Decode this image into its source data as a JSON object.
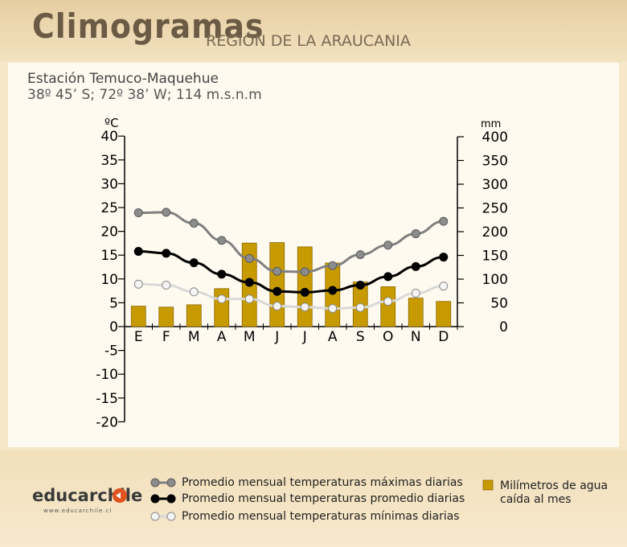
{
  "header": {
    "title": "Climogramas",
    "subtitle": "REGIÓN DE LA ARAUCANIA"
  },
  "station": {
    "name": "Estación Temuco-Maquehue",
    "coords": "38º 45’ S; 72º 38’ W; 114 m.s.n.m"
  },
  "legend": {
    "max": "Promedio mensual temperaturas máximas diarias",
    "avg": "Promedio mensual temperaturas promedio diarias",
    "min": "Promedio mensual temperaturas mínimas diarias",
    "rain_line1": "Milímetros de agua",
    "rain_line2": "caída al mes"
  },
  "logo": {
    "name": "educarchile",
    "url": "www.educarchile.cl"
  },
  "colors": {
    "max": "#7f7f7f",
    "avg": "#000000",
    "min": "#d8d8d8",
    "rain": "#c79a00",
    "accent_logo": "#e0531f"
  },
  "chart_data": {
    "type": "bar+line",
    "categories": [
      "E",
      "F",
      "M",
      "A",
      "M",
      "J",
      "J",
      "A",
      "S",
      "O",
      "N",
      "D"
    ],
    "left_axis": {
      "label": "ºC",
      "min": -20,
      "max": 40,
      "ticks": [
        40,
        35,
        30,
        25,
        20,
        15,
        10,
        5,
        0,
        -5,
        -10,
        -15,
        -20
      ]
    },
    "right_axis": {
      "label": "mm",
      "min": 0,
      "max": 400,
      "ticks": [
        400,
        350,
        300,
        250,
        200,
        150,
        100,
        50,
        0
      ]
    },
    "series": [
      {
        "name": "Promedio mensual temperaturas máximas diarias",
        "axis": "left",
        "kind": "line",
        "values": [
          23.9,
          24.0,
          21.7,
          18.1,
          14.3,
          11.6,
          11.5,
          12.8,
          15.1,
          17.1,
          19.5,
          22.1
        ]
      },
      {
        "name": "Promedio mensual temperaturas promedio diarias",
        "axis": "left",
        "kind": "line",
        "values": [
          15.8,
          15.4,
          13.4,
          11.0,
          9.3,
          7.4,
          7.2,
          7.6,
          8.7,
          10.5,
          12.6,
          14.6
        ]
      },
      {
        "name": "Promedio mensual temperaturas mínimas diarias",
        "axis": "left",
        "kind": "line",
        "values": [
          8.9,
          8.7,
          7.3,
          5.8,
          5.8,
          4.3,
          4.1,
          3.8,
          4.0,
          5.3,
          7.0,
          8.5
        ]
      },
      {
        "name": "Milímetros de agua caída al mes",
        "axis": "right",
        "kind": "bar",
        "values": [
          43,
          41,
          46,
          80,
          176,
          177,
          168,
          134,
          94,
          84,
          60,
          53
        ]
      }
    ]
  }
}
